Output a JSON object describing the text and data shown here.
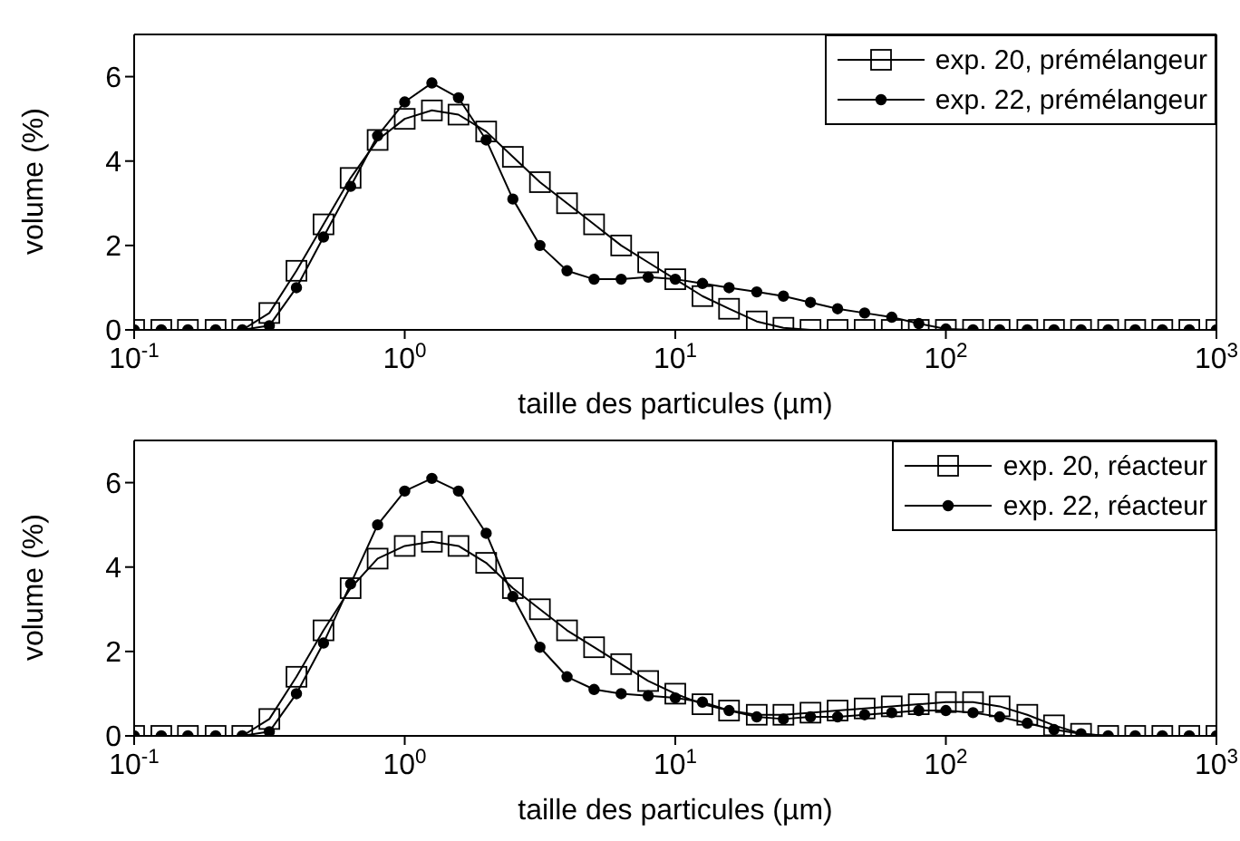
{
  "chart_data": [
    {
      "type": "line",
      "xlabel": "taille des particules (µm)",
      "ylabel": "volume (%)",
      "log": "x",
      "xlim": [
        0.1,
        1000
      ],
      "ylim": [
        0,
        7
      ],
      "yticks": [
        0,
        2,
        4,
        6
      ],
      "xticks": [
        {
          "value": 0.1,
          "label": "10$^{-1}$"
        },
        {
          "value": 1,
          "label": "10$^{0}$"
        },
        {
          "value": 10,
          "label": "10$^{1}$"
        },
        {
          "value": 100,
          "label": "10$^{2}$"
        },
        {
          "value": 1000,
          "label": "10$^{3}$"
        }
      ],
      "grid": false,
      "legend": "top right",
      "line_style": "solid",
      "x": [
        0.1,
        0.126,
        0.158,
        0.2,
        0.251,
        0.316,
        0.398,
        0.501,
        0.631,
        0.794,
        1,
        1.26,
        1.58,
        2,
        2.51,
        3.16,
        3.98,
        5.01,
        6.31,
        7.94,
        10,
        12.6,
        15.8,
        20,
        25.1,
        31.6,
        39.8,
        50.1,
        63.1,
        79.4,
        100,
        126,
        158,
        200,
        251,
        316,
        398,
        501,
        631,
        794,
        1000
      ],
      "series": [
        {
          "name": "exp. 20, prémélangeur",
          "color": "#000000",
          "marker": "square",
          "values": [
            0,
            0,
            0,
            0,
            0,
            0.4,
            1.4,
            2.5,
            3.6,
            4.5,
            5.0,
            5.2,
            5.1,
            4.7,
            4.1,
            3.5,
            3.0,
            2.5,
            2.0,
            1.6,
            1.2,
            0.8,
            0.5,
            0.2,
            0.05,
            0,
            0,
            0,
            0,
            0,
            0,
            0,
            0,
            0,
            0,
            0,
            0,
            0,
            0,
            0,
            0
          ]
        },
        {
          "name": "exp. 22, prémélangeur",
          "color": "#000000",
          "marker": "circle",
          "values": [
            0,
            0,
            0,
            0,
            0,
            0.1,
            1.0,
            2.2,
            3.4,
            4.6,
            5.4,
            5.85,
            5.5,
            4.5,
            3.1,
            2.0,
            1.4,
            1.2,
            1.2,
            1.25,
            1.2,
            1.1,
            1.0,
            0.9,
            0.8,
            0.65,
            0.5,
            0.4,
            0.3,
            0.15,
            0.02,
            0,
            0,
            0,
            0,
            0,
            0,
            0,
            0,
            0,
            0
          ]
        }
      ]
    },
    {
      "type": "line",
      "xlabel": "taille des particules (µm)",
      "ylabel": "volume (%)",
      "log": "x",
      "xlim": [
        0.1,
        1000
      ],
      "ylim": [
        0,
        7
      ],
      "yticks": [
        0,
        2,
        4,
        6
      ],
      "xticks": [
        {
          "value": 0.1,
          "label": "10$^{-1}$"
        },
        {
          "value": 1,
          "label": "10$^{0}$"
        },
        {
          "value": 10,
          "label": "10$^{1}$"
        },
        {
          "value": 100,
          "label": "10$^{2}$"
        },
        {
          "value": 1000,
          "label": "10$^{3}$"
        }
      ],
      "grid": false,
      "legend": "top right",
      "line_style": "solid",
      "x": [
        0.1,
        0.126,
        0.158,
        0.2,
        0.251,
        0.316,
        0.398,
        0.501,
        0.631,
        0.794,
        1,
        1.26,
        1.58,
        2,
        2.51,
        3.16,
        3.98,
        5.01,
        6.31,
        7.94,
        10,
        12.6,
        15.8,
        20,
        25.1,
        31.6,
        39.8,
        50.1,
        63.1,
        79.4,
        100,
        126,
        158,
        200,
        251,
        316,
        398,
        501,
        631,
        794,
        1000
      ],
      "series": [
        {
          "name": "exp. 20, réacteur",
          "color": "#000000",
          "marker": "square",
          "values": [
            0,
            0,
            0,
            0,
            0,
            0.4,
            1.4,
            2.5,
            3.5,
            4.2,
            4.5,
            4.6,
            4.5,
            4.1,
            3.5,
            3.0,
            2.5,
            2.1,
            1.7,
            1.3,
            1.0,
            0.75,
            0.6,
            0.5,
            0.5,
            0.55,
            0.6,
            0.65,
            0.7,
            0.75,
            0.8,
            0.8,
            0.7,
            0.5,
            0.25,
            0.05,
            0,
            0,
            0,
            0,
            0
          ]
        },
        {
          "name": "exp. 22, réacteur",
          "color": "#000000",
          "marker": "circle",
          "values": [
            0,
            0,
            0,
            0,
            0,
            0.1,
            1.0,
            2.2,
            3.6,
            5.0,
            5.8,
            6.1,
            5.8,
            4.8,
            3.3,
            2.1,
            1.4,
            1.1,
            1.0,
            0.95,
            0.9,
            0.8,
            0.6,
            0.45,
            0.4,
            0.45,
            0.45,
            0.5,
            0.55,
            0.6,
            0.6,
            0.55,
            0.45,
            0.3,
            0.15,
            0.05,
            0,
            0,
            0,
            0,
            0
          ]
        }
      ]
    }
  ]
}
